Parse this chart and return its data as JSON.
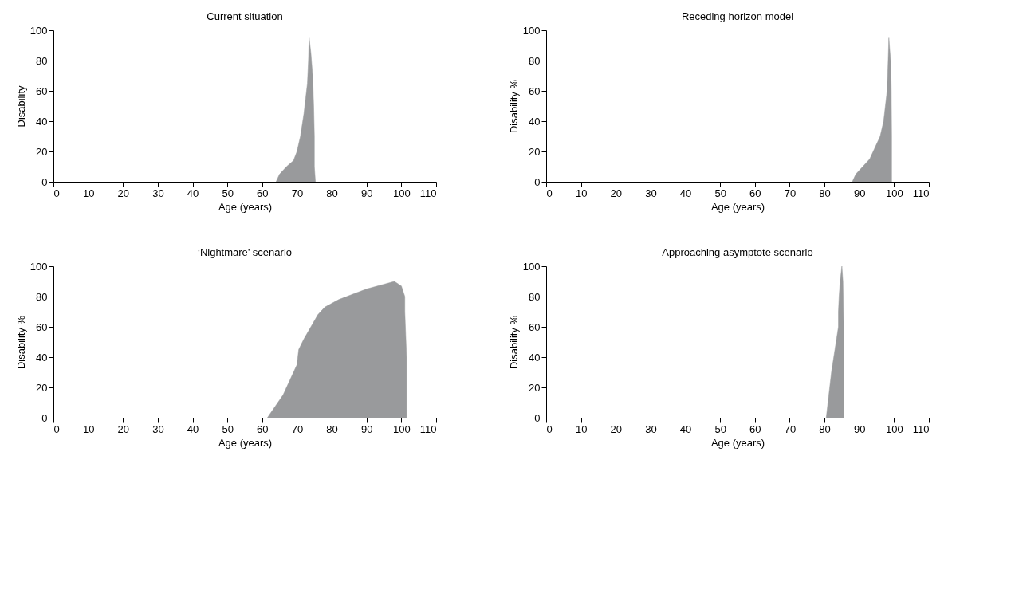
{
  "chart_data": [
    {
      "type": "area",
      "title": "Current situation",
      "xlabel": "Age (years)",
      "ylabel": "Disability",
      "xlim": [
        0,
        110
      ],
      "xticks": [
        0,
        10,
        20,
        30,
        40,
        50,
        60,
        70,
        80,
        90,
        100,
        110
      ],
      "ylim": [
        0,
        100
      ],
      "yticks": [
        0,
        20,
        40,
        60,
        80,
        100
      ],
      "grid": false,
      "series": [
        {
          "color": "#999a9c",
          "x": [
            64,
            65,
            67,
            69,
            70,
            71,
            72,
            73,
            73.3,
            73.5,
            74,
            74.5,
            74.8,
            75,
            75,
            75.3
          ],
          "values": [
            0,
            5,
            10,
            14,
            20,
            30,
            45,
            65,
            80,
            95,
            85,
            70,
            50,
            30,
            10,
            0
          ]
        }
      ]
    },
    {
      "type": "area",
      "title": "Receding horizon model",
      "xlabel": "Age (years)",
      "ylabel": "Disability %",
      "xlim": [
        0,
        110
      ],
      "xticks": [
        0,
        10,
        20,
        30,
        40,
        50,
        60,
        70,
        80,
        90,
        100,
        110
      ],
      "ylim": [
        0,
        100
      ],
      "yticks": [
        0,
        20,
        40,
        60,
        80,
        100
      ],
      "grid": false,
      "series": [
        {
          "color": "#999a9c",
          "x": [
            88,
            89,
            91,
            93,
            94,
            96,
            97,
            98,
            98.3,
            98.5,
            99,
            99.2,
            99.3,
            99.3
          ],
          "values": [
            0,
            5,
            10,
            15,
            20,
            30,
            40,
            60,
            80,
            95,
            80,
            60,
            30,
            0
          ]
        }
      ]
    },
    {
      "type": "area",
      "title": "‘Nightmare’ scenario",
      "xlabel": "Age (years)",
      "ylabel": "Disability %",
      "xlim": [
        0,
        110
      ],
      "xticks": [
        0,
        10,
        20,
        30,
        40,
        50,
        60,
        70,
        80,
        90,
        100,
        110
      ],
      "ylim": [
        0,
        100
      ],
      "yticks": [
        0,
        20,
        40,
        60,
        80,
        100
      ],
      "grid": false,
      "series": [
        {
          "color": "#999a9c",
          "x": [
            61.5,
            63,
            66,
            68,
            70,
            70.5,
            72,
            74,
            76,
            78,
            82,
            90,
            98,
            100,
            101,
            101,
            101.5,
            101.5
          ],
          "values": [
            0,
            5,
            15,
            25,
            35,
            45,
            52,
            60,
            68,
            73,
            78,
            85,
            90,
            87,
            80,
            70,
            40,
            0
          ]
        }
      ]
    },
    {
      "type": "area",
      "title": "Approaching asymptote scenario",
      "xlabel": "Age (years)",
      "ylabel": "Disability %",
      "xlim": [
        0,
        110
      ],
      "xticks": [
        0,
        10,
        20,
        30,
        40,
        50,
        60,
        70,
        80,
        90,
        100,
        110
      ],
      "ylim": [
        0,
        100
      ],
      "yticks": [
        0,
        20,
        40,
        60,
        80,
        100
      ],
      "grid": false,
      "series": [
        {
          "color": "#999a9c",
          "x": [
            80.5,
            81,
            81.5,
            82,
            83,
            84,
            84,
            84.2,
            84.5,
            85,
            85.3,
            85.5,
            85.5
          ],
          "values": [
            0,
            10,
            20,
            30,
            45,
            60,
            70,
            80,
            90,
            100,
            90,
            60,
            0
          ]
        }
      ]
    }
  ]
}
